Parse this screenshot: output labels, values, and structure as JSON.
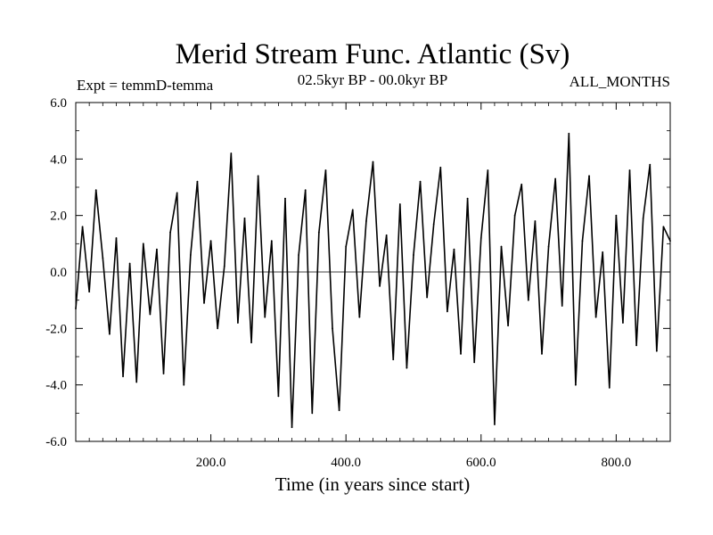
{
  "chart_data": {
    "type": "line",
    "title": "Merid Stream Func. Atlantic (Sv)",
    "subtitle_left": "Expt = temmD-temma",
    "subtitle_center": "02.5kyr BP - 00.0kyr BP",
    "subtitle_right": "ALL_MONTHS",
    "xlabel": "Time (in years since start)",
    "ylabel": "",
    "xlim": [
      0,
      880
    ],
    "ylim": [
      -6.0,
      6.0
    ],
    "x_ticks": [
      200,
      400,
      600,
      800
    ],
    "x_tick_labels": [
      "200.0",
      "400.0",
      "600.0",
      "800.0"
    ],
    "y_ticks": [
      6,
      4,
      2,
      0,
      -2,
      -4,
      -6
    ],
    "y_tick_labels": [
      "6.0",
      "4.0",
      "2.0",
      "0.0",
      "-2.0",
      "-4.0",
      "-6.0"
    ],
    "zero_line": 0,
    "series": [
      {
        "name": "Merid Stream Func. Atlantic",
        "x": [
          0,
          10,
          20,
          30,
          40,
          50,
          60,
          70,
          80,
          90,
          100,
          110,
          120,
          130,
          140,
          150,
          160,
          170,
          180,
          190,
          200,
          210,
          220,
          230,
          240,
          250,
          260,
          270,
          280,
          290,
          300,
          310,
          320,
          330,
          340,
          350,
          360,
          370,
          380,
          390,
          400,
          410,
          420,
          430,
          440,
          450,
          460,
          470,
          480,
          490,
          500,
          510,
          520,
          530,
          540,
          550,
          560,
          570,
          580,
          590,
          600,
          610,
          620,
          630,
          640,
          650,
          660,
          670,
          680,
          690,
          700,
          710,
          720,
          730,
          740,
          750,
          760,
          770,
          780,
          790,
          800,
          810,
          820,
          830,
          840,
          850,
          860,
          870,
          880
        ],
        "values": [
          -1.3,
          1.6,
          -0.7,
          2.9,
          0.5,
          -2.2,
          1.2,
          -3.7,
          0.3,
          -3.9,
          1.0,
          -1.5,
          0.8,
          -3.6,
          1.4,
          2.8,
          -4.0,
          0.6,
          3.2,
          -1.1,
          1.1,
          -2.0,
          0.2,
          4.2,
          -1.8,
          1.9,
          -2.5,
          3.4,
          -1.6,
          1.1,
          -4.4,
          2.6,
          -5.5,
          0.6,
          2.9,
          -5.0,
          1.4,
          3.6,
          -2.0,
          -4.9,
          0.9,
          2.2,
          -1.6,
          1.8,
          3.9,
          -0.5,
          1.3,
          -3.1,
          2.4,
          -3.4,
          0.6,
          3.2,
          -0.9,
          1.7,
          3.7,
          -1.4,
          0.8,
          -2.9,
          2.6,
          -3.2,
          1.2,
          3.6,
          -5.4,
          0.9,
          -1.9,
          2.0,
          3.1,
          -1.0,
          1.8,
          -2.9,
          0.9,
          3.3,
          -1.2,
          4.9,
          -4.0,
          1.1,
          3.4,
          -1.6,
          0.7,
          -4.1,
          2.0,
          -1.8,
          3.6,
          -2.6,
          1.9,
          3.8,
          -2.8,
          1.6,
          1.1
        ]
      }
    ]
  }
}
